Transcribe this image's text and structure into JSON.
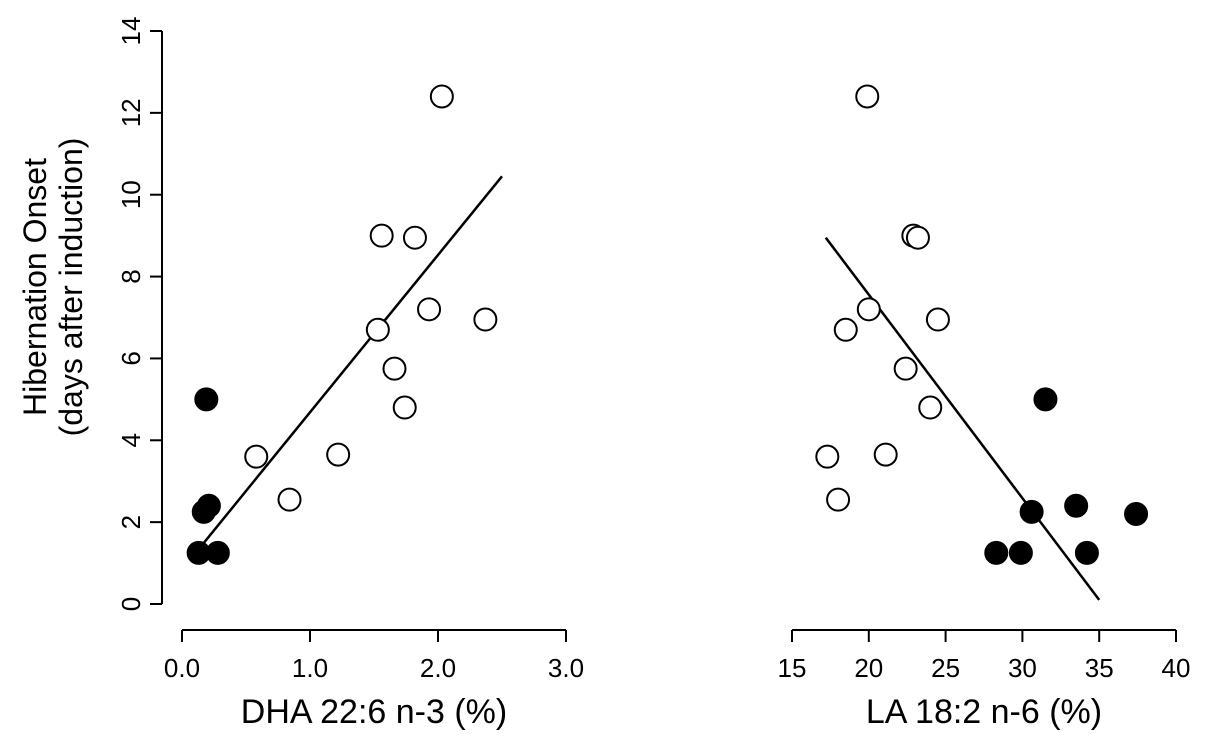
{
  "ylabel_line1": "Hibernation Onset",
  "ylabel_line2": "(days after induction)",
  "chart_data": [
    {
      "type": "scatter",
      "xlabel": "DHA 22:6 n-3 (%)",
      "ylabel": "Hibernation Onset (days after induction)",
      "xlim": [
        0.0,
        3.0
      ],
      "ylim": [
        0,
        14
      ],
      "xticks": [
        "0.0",
        "1.0",
        "2.0",
        "3.0"
      ],
      "yticks": [
        "0",
        "2",
        "4",
        "6",
        "8",
        "10",
        "12",
        "14"
      ],
      "grid": false,
      "series": [
        {
          "marker": "filled",
          "points": [
            [
              0.13,
              1.25
            ],
            [
              0.28,
              1.25
            ],
            [
              0.17,
              2.25
            ],
            [
              0.21,
              2.4
            ],
            [
              0.19,
              5.0
            ]
          ]
        },
        {
          "marker": "open",
          "points": [
            [
              0.58,
              3.6
            ],
            [
              0.84,
              2.55
            ],
            [
              1.22,
              3.65
            ],
            [
              1.53,
              6.7
            ],
            [
              1.56,
              9.0
            ],
            [
              1.66,
              5.75
            ],
            [
              1.74,
              4.8
            ],
            [
              1.82,
              8.95
            ],
            [
              1.93,
              7.2
            ],
            [
              2.03,
              12.4
            ],
            [
              2.37,
              6.95
            ]
          ]
        }
      ],
      "trendline": [
        [
          0.12,
          1.3
        ],
        [
          2.5,
          10.45
        ]
      ]
    },
    {
      "type": "scatter",
      "xlabel": "LA 18:2 n-6 (%)",
      "xlim": [
        15,
        40
      ],
      "ylim": [
        0,
        14
      ],
      "xticks": [
        "15",
        "20",
        "25",
        "30",
        "35",
        "40"
      ],
      "grid": false,
      "series": [
        {
          "marker": "filled",
          "points": [
            [
              28.3,
              1.25
            ],
            [
              29.9,
              1.25
            ],
            [
              34.2,
              1.25
            ],
            [
              30.6,
              2.25
            ],
            [
              33.5,
              2.4
            ],
            [
              37.4,
              2.2
            ],
            [
              31.5,
              5.0
            ]
          ]
        },
        {
          "marker": "open",
          "points": [
            [
              17.3,
              3.6
            ],
            [
              18.0,
              2.55
            ],
            [
              21.1,
              3.65
            ],
            [
              18.5,
              6.7
            ],
            [
              20.0,
              7.2
            ],
            [
              22.4,
              5.75
            ],
            [
              24.0,
              4.8
            ],
            [
              24.5,
              6.95
            ],
            [
              22.9,
              9.0
            ],
            [
              23.2,
              8.95
            ],
            [
              19.9,
              12.4
            ]
          ]
        }
      ],
      "trendline": [
        [
          17.2,
          8.95
        ],
        [
          35.0,
          0.1
        ]
      ]
    }
  ]
}
